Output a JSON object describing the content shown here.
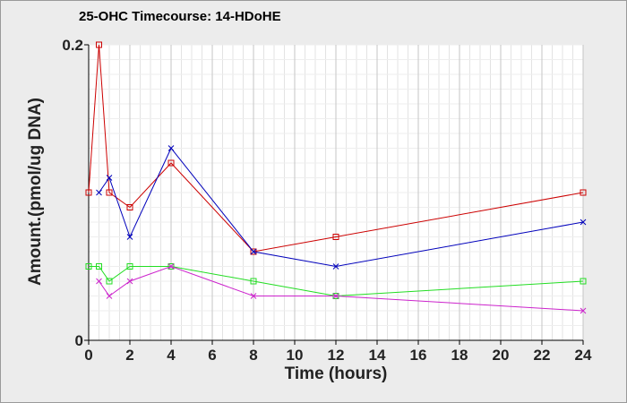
{
  "chart_data": {
    "type": "line",
    "title": "25-OHC Timecourse: 14-HDoHE",
    "xlabel": "Time (hours)",
    "ylabel": "Amount.(pmol/ug DNA)",
    "xlim": [
      0,
      24
    ],
    "ylim": [
      0,
      0.2
    ],
    "x_ticks": [
      "0",
      "2",
      "4",
      "6",
      "8",
      "10",
      "12",
      "14",
      "16",
      "18",
      "20",
      "22",
      "24"
    ],
    "y_ticks": [
      "0",
      "0.2"
    ],
    "grid": true,
    "legend": "none",
    "series": [
      {
        "color": "#cc0000",
        "marker": "square",
        "points": [
          [
            0,
            0.1
          ],
          [
            0.5,
            0.2
          ],
          [
            1,
            0.1
          ],
          [
            2,
            0.09
          ],
          [
            4,
            0.12
          ],
          [
            8,
            0.06
          ],
          [
            12,
            0.07
          ],
          [
            24,
            0.1
          ]
        ]
      },
      {
        "color": "#0000bb",
        "marker": "x",
        "points": [
          [
            0.5,
            0.1
          ],
          [
            1,
            0.11
          ],
          [
            2,
            0.07
          ],
          [
            4,
            0.13
          ],
          [
            8,
            0.06
          ],
          [
            12,
            0.05
          ],
          [
            24,
            0.08
          ]
        ]
      },
      {
        "color": "#22dd22",
        "marker": "square",
        "points": [
          [
            0,
            0.05
          ],
          [
            0.5,
            0.05
          ],
          [
            1,
            0.04
          ],
          [
            2,
            0.05
          ],
          [
            4,
            0.05
          ],
          [
            8,
            0.04
          ],
          [
            12,
            0.03
          ],
          [
            24,
            0.04
          ]
        ]
      },
      {
        "color": "#cc22cc",
        "marker": "x",
        "points": [
          [
            0.5,
            0.04
          ],
          [
            1,
            0.03
          ],
          [
            2,
            0.04
          ],
          [
            4,
            0.05
          ],
          [
            8,
            0.03
          ],
          [
            12,
            0.03
          ],
          [
            24,
            0.02
          ]
        ]
      }
    ]
  }
}
